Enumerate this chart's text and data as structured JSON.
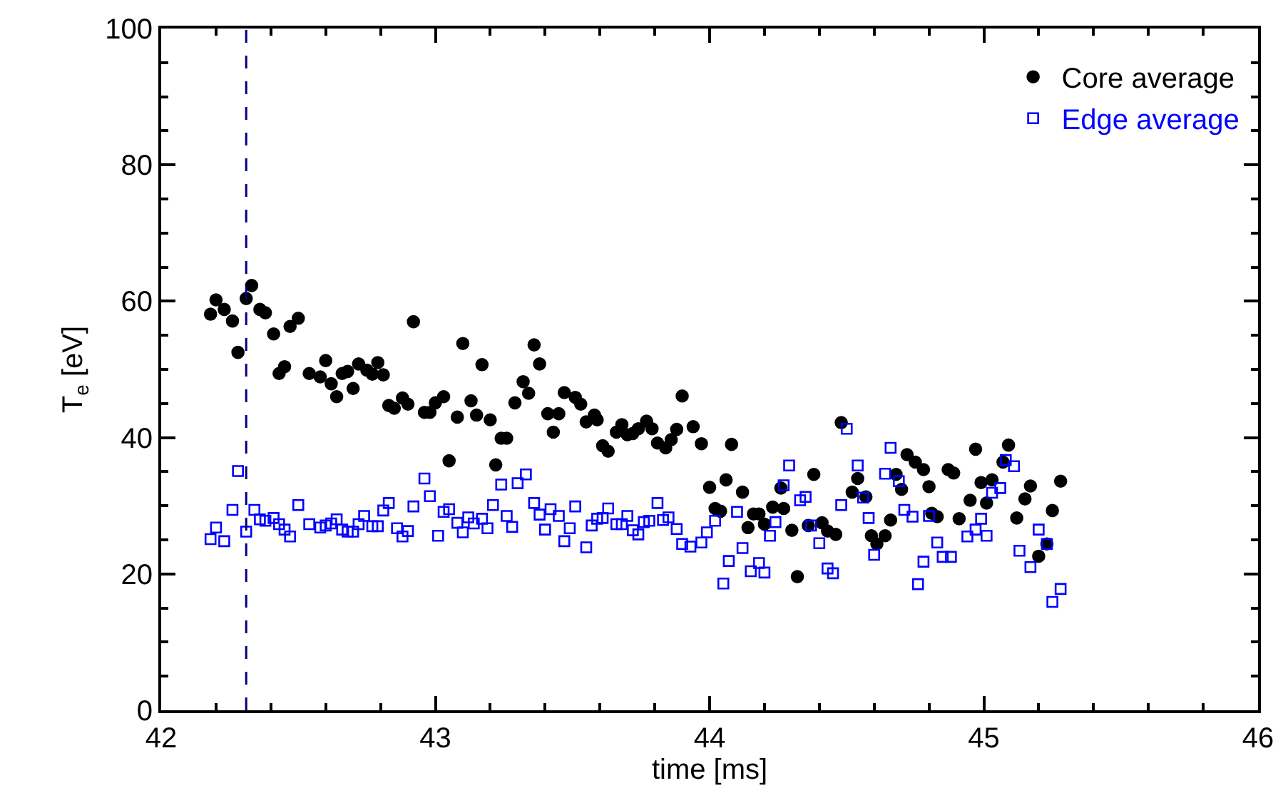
{
  "chart_data": {
    "type": "scatter",
    "xlabel": "time [ms]",
    "ylabel": "T$_{e}$ [eV]",
    "xlim": [
      42,
      46
    ],
    "ylim": [
      0,
      100
    ],
    "xticks": [
      42,
      43,
      44,
      45,
      46
    ],
    "yticks": [
      0,
      20,
      40,
      60,
      80,
      100
    ],
    "legend": "top right",
    "ref_lines": [
      {
        "axis": "x",
        "value": 42.31,
        "color": "#000080",
        "line_style": "dashed"
      }
    ],
    "series": [
      {
        "name": "Core average",
        "color": "#000000",
        "marker": "circle",
        "x": [
          42.18,
          42.2,
          42.23,
          42.26,
          42.28,
          42.31,
          42.33,
          42.36,
          42.38,
          42.41,
          42.43,
          42.45,
          42.47,
          42.5,
          42.54,
          42.58,
          42.6,
          42.62,
          42.64,
          42.66,
          42.68,
          42.7,
          42.72,
          42.75,
          42.77,
          42.79,
          42.81,
          42.83,
          42.85,
          42.88,
          42.9,
          42.92,
          42.96,
          42.98,
          43.0,
          43.03,
          43.05,
          43.08,
          43.1,
          43.13,
          43.15,
          43.17,
          43.2,
          43.22,
          43.24,
          43.26,
          43.29,
          43.32,
          43.34,
          43.36,
          43.38,
          43.41,
          43.43,
          43.45,
          43.47,
          43.51,
          43.53,
          43.55,
          43.58,
          43.59,
          43.61,
          43.63,
          43.66,
          43.68,
          43.7,
          43.72,
          43.74,
          43.77,
          43.79,
          43.81,
          43.84,
          43.86,
          43.88,
          43.9,
          43.94,
          43.97,
          44.0,
          44.02,
          44.04,
          44.06,
          44.08,
          44.12,
          44.14,
          44.16,
          44.18,
          44.2,
          44.23,
          44.26,
          44.27,
          44.3,
          44.32,
          44.36,
          44.38,
          44.41,
          44.43,
          44.46,
          44.48,
          44.52,
          44.54,
          44.57,
          44.59,
          44.61,
          44.64,
          44.66,
          44.68,
          44.7,
          44.72,
          44.75,
          44.78,
          44.8,
          44.81,
          44.83,
          44.87,
          44.89,
          44.91,
          44.95,
          44.97,
          44.99,
          45.01,
          45.03,
          45.07,
          45.09,
          45.12,
          45.15,
          45.17,
          45.2,
          45.23,
          45.25,
          45.28
        ],
        "values": [
          58.1,
          60.2,
          58.8,
          57.1,
          52.5,
          60.4,
          62.3,
          58.8,
          58.3,
          55.2,
          49.4,
          50.4,
          56.3,
          57.5,
          49.4,
          48.9,
          51.3,
          47.9,
          46.0,
          49.4,
          49.7,
          47.2,
          50.8,
          49.9,
          49.3,
          51.0,
          49.2,
          44.7,
          44.3,
          45.8,
          44.9,
          57.0,
          43.7,
          43.7,
          45.1,
          46.0,
          36.6,
          43.0,
          53.8,
          45.4,
          43.3,
          50.7,
          42.6,
          36.0,
          39.9,
          39.9,
          45.1,
          48.2,
          46.5,
          53.6,
          50.8,
          43.5,
          40.8,
          43.5,
          46.6,
          45.9,
          44.9,
          42.3,
          43.3,
          42.6,
          38.8,
          38.0,
          40.8,
          41.9,
          40.4,
          40.6,
          41.3,
          42.4,
          41.3,
          39.2,
          38.5,
          39.7,
          41.2,
          46.1,
          41.6,
          39.1,
          32.7,
          29.6,
          29.2,
          33.8,
          39.0,
          32.0,
          26.8,
          28.8,
          28.8,
          27.3,
          29.8,
          32.6,
          29.6,
          26.4,
          19.6,
          27.1,
          34.6,
          27.5,
          26.3,
          25.8,
          42.2,
          32.0,
          34.0,
          31.3,
          25.6,
          24.4,
          25.6,
          27.9,
          34.6,
          32.4,
          37.5,
          36.4,
          35.3,
          32.8,
          28.9,
          28.4,
          35.3,
          34.8,
          28.1,
          30.8,
          38.3,
          33.4,
          30.4,
          33.8,
          36.4,
          38.9,
          28.2,
          31.0,
          32.9,
          22.6,
          24.4,
          29.3,
          33.6
        ]
      },
      {
        "name": "Edge average",
        "color": "#0000ff",
        "marker": "square-open",
        "x": [
          42.18,
          42.2,
          42.23,
          42.26,
          42.28,
          42.31,
          42.34,
          42.36,
          42.38,
          42.41,
          42.43,
          42.45,
          42.47,
          42.5,
          42.54,
          42.58,
          42.6,
          42.62,
          42.64,
          42.66,
          42.68,
          42.7,
          42.72,
          42.74,
          42.77,
          42.79,
          42.81,
          42.83,
          42.86,
          42.88,
          42.9,
          42.92,
          42.96,
          42.98,
          43.01,
          43.03,
          43.05,
          43.08,
          43.1,
          43.12,
          43.14,
          43.17,
          43.19,
          43.21,
          43.24,
          43.26,
          43.28,
          43.3,
          43.33,
          43.36,
          43.38,
          43.4,
          43.42,
          43.45,
          43.47,
          43.49,
          43.51,
          43.55,
          43.57,
          43.59,
          43.61,
          43.63,
          43.66,
          43.68,
          43.7,
          43.72,
          43.74,
          43.76,
          43.78,
          43.81,
          43.83,
          43.85,
          43.88,
          43.9,
          43.93,
          43.97,
          43.99,
          44.02,
          44.05,
          44.07,
          44.1,
          44.12,
          44.15,
          44.18,
          44.2,
          44.22,
          44.24,
          44.27,
          44.29,
          44.33,
          44.35,
          44.37,
          44.4,
          44.43,
          44.45,
          44.48,
          44.5,
          44.54,
          44.56,
          44.58,
          44.6,
          44.64,
          44.66,
          44.69,
          44.71,
          44.74,
          44.76,
          44.78,
          44.8,
          44.83,
          44.85,
          44.88,
          44.94,
          44.97,
          44.99,
          45.01,
          45.03,
          45.06,
          45.08,
          45.11,
          45.13,
          45.17,
          45.2,
          45.23,
          45.25,
          45.28
        ],
        "values": [
          25.1,
          26.8,
          24.8,
          29.4,
          35.1,
          26.2,
          29.4,
          28.0,
          27.8,
          28.2,
          27.3,
          26.5,
          25.5,
          30.1,
          27.3,
          26.8,
          27.1,
          27.4,
          28.0,
          26.5,
          26.2,
          26.2,
          27.3,
          28.5,
          27.0,
          27.0,
          29.3,
          30.4,
          26.7,
          25.5,
          26.3,
          29.9,
          34.0,
          31.4,
          25.6,
          29.1,
          29.5,
          27.5,
          26.1,
          28.3,
          27.4,
          28.1,
          26.7,
          30.1,
          33.1,
          28.5,
          26.9,
          33.3,
          34.6,
          30.4,
          28.7,
          26.5,
          29.5,
          28.5,
          24.8,
          26.7,
          29.9,
          23.9,
          27.1,
          28.1,
          28.2,
          29.6,
          27.3,
          27.3,
          28.5,
          26.4,
          25.8,
          27.6,
          27.8,
          30.4,
          27.9,
          28.3,
          26.6,
          24.4,
          24.0,
          24.6,
          26.1,
          27.8,
          18.6,
          21.9,
          29.1,
          23.8,
          20.4,
          21.6,
          20.2,
          25.6,
          27.6,
          33.0,
          35.9,
          30.8,
          31.3,
          27.1,
          24.5,
          20.8,
          20.1,
          30.1,
          41.3,
          35.9,
          31.2,
          28.2,
          22.8,
          34.7,
          38.5,
          33.6,
          29.4,
          28.4,
          18.5,
          21.8,
          28.5,
          24.6,
          22.5,
          22.5,
          25.5,
          26.5,
          28.1,
          25.6,
          31.9,
          32.6,
          36.7,
          35.8,
          23.4,
          21.0,
          26.5,
          24.4,
          15.9,
          17.8
        ]
      }
    ]
  }
}
